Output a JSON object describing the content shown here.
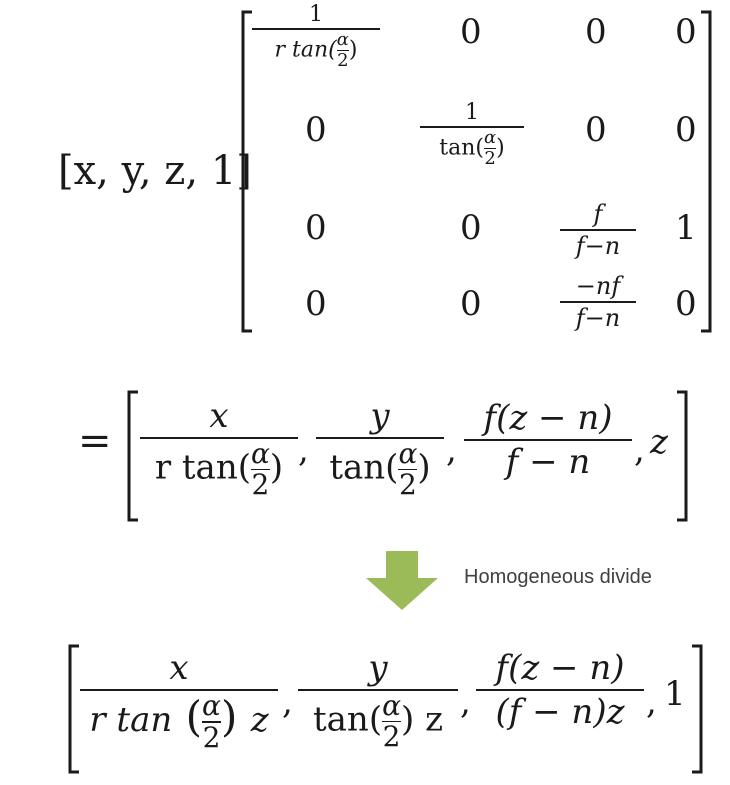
{
  "row_vector": "[x, y, z, 1]",
  "matrix": {
    "r0": {
      "c0": {
        "num": "1",
        "den_prefix": "r tan(",
        "den_frac_num": "α",
        "den_frac_den": "2",
        "den_suffix": ")"
      },
      "c1": "0",
      "c2": "0",
      "c3": "0"
    },
    "r1": {
      "c0": "0",
      "c1": {
        "num": "1",
        "den_prefix": "tan(",
        "den_frac_num": "α",
        "den_frac_den": "2",
        "den_suffix": ")"
      },
      "c2": "0",
      "c3": "0"
    },
    "r2": {
      "c0": "0",
      "c1": "0",
      "c2": {
        "num": "f",
        "den": "f−n"
      },
      "c3": "1"
    },
    "r3": {
      "c0": "0",
      "c1": "0",
      "c2": {
        "num": "−nf",
        "den": "f−n"
      },
      "c3": "0"
    }
  },
  "result": {
    "equals": "=",
    "t1": {
      "num": "x",
      "den_prefix": "r tan(",
      "den_frac_num": "α",
      "den_frac_den": "2",
      "den_suffix": ")"
    },
    "t2": {
      "num": "y",
      "den_prefix": "tan(",
      "den_frac_num": "α",
      "den_frac_den": "2",
      "den_suffix": ")"
    },
    "t3": {
      "num": "f(z − n)",
      "den": "f − n"
    },
    "t4": "z",
    "comma": ","
  },
  "arrow": {
    "label": "Homogeneous divide",
    "color": "#9bbb59"
  },
  "final": {
    "t1": {
      "num": "x",
      "den_prefix": "r tan",
      "den_frac_num": "α",
      "den_frac_den": "2",
      "den_suffix": "z"
    },
    "t2": {
      "num": "y",
      "den_prefix": "tan(",
      "den_frac_num": "α",
      "den_frac_den": "2",
      "den_suffix": ") z"
    },
    "t3": {
      "num": "f(z − n)",
      "den": "(f − n)z"
    },
    "t4": "1",
    "comma": ","
  }
}
